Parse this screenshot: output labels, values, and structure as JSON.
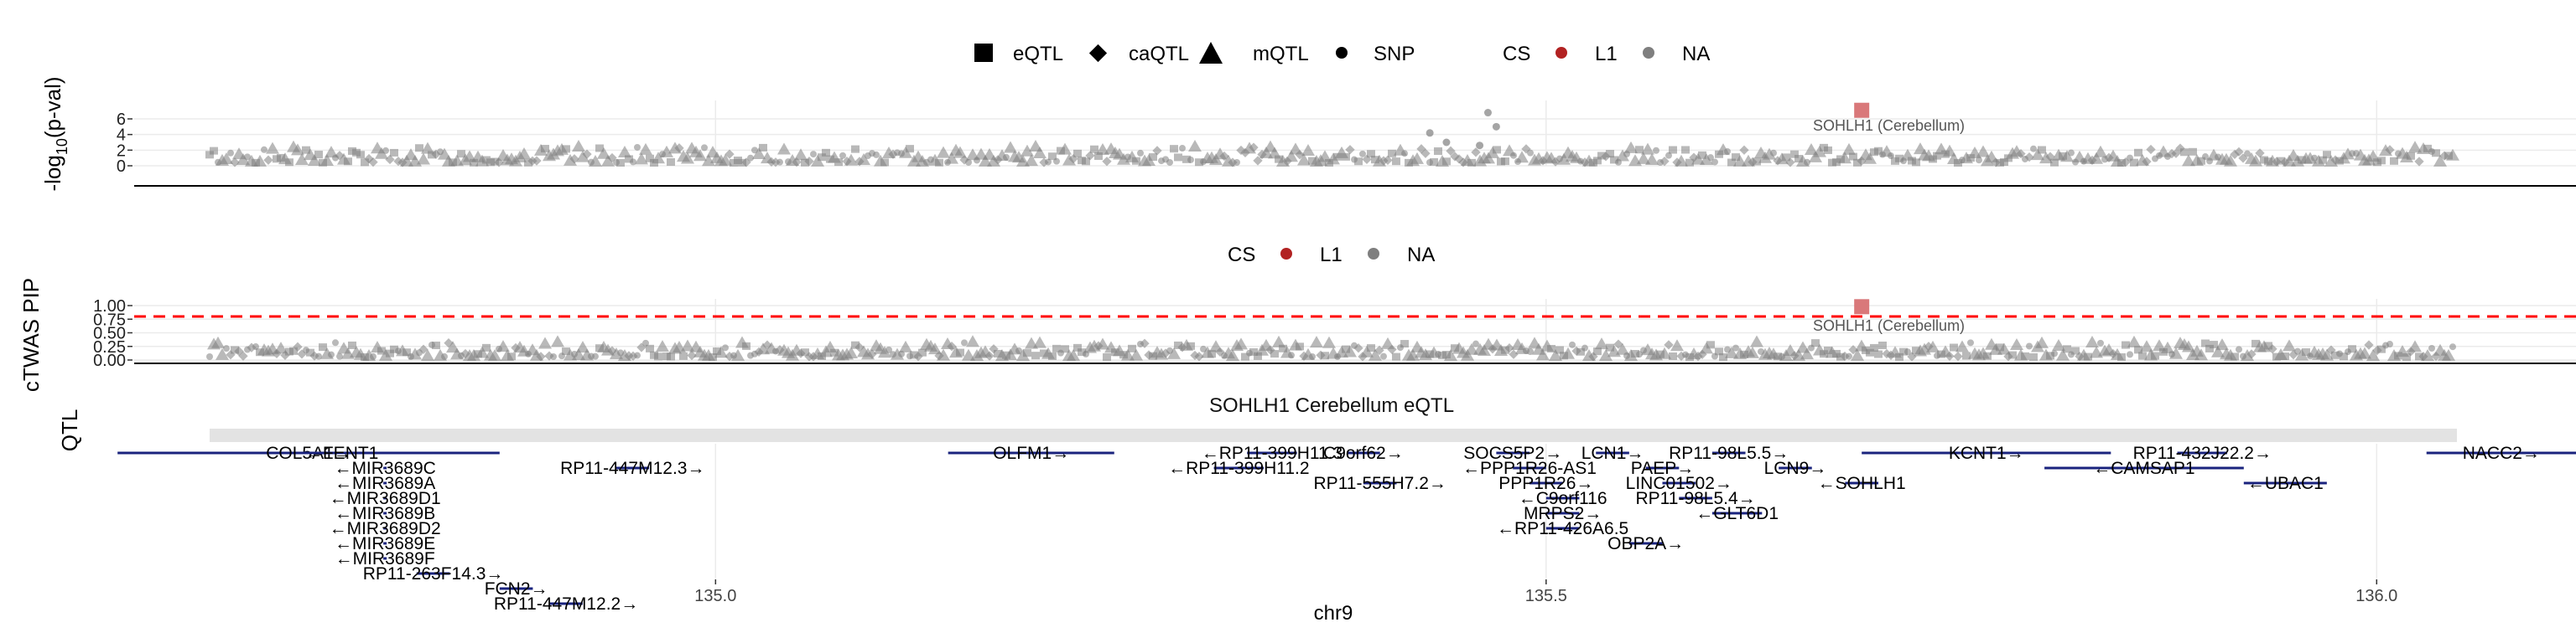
{
  "colors": {
    "point": "#7f7f7f",
    "credible_set": "#b22222",
    "highlight": "#d9787a",
    "gene": "#1a237e",
    "threshold": "#ff0000",
    "grid": "#ebebeb",
    "strip": "#e3e3e3"
  },
  "legend_top": {
    "shapes": [
      {
        "label": "eQTL",
        "shape": "square"
      },
      {
        "label": "caQTL",
        "shape": "diamond"
      },
      {
        "label": "mQTL",
        "shape": "triangle"
      },
      {
        "label": "SNP",
        "shape": "circle"
      }
    ],
    "cs_title": "CS",
    "cs_items": [
      {
        "label": "L1",
        "color": "#b22222"
      },
      {
        "label": "NA",
        "color": "#7f7f7f"
      }
    ]
  },
  "legend_mid": {
    "cs_title": "CS",
    "cs_items": [
      {
        "label": "L1",
        "color": "#b22222"
      },
      {
        "label": "NA",
        "color": "#7f7f7f"
      }
    ]
  },
  "chart_data": [
    {
      "type": "scatter",
      "panel": "qtl",
      "ylabel_main": "-log",
      "ylabel_sub": "10",
      "ylabel_end": "(p-val)",
      "ylim": [
        0,
        7.5
      ],
      "y_ticks": [
        "0",
        "2",
        "4",
        "6"
      ],
      "xlim": [
        134.65,
        136.12
      ],
      "highlight": {
        "x": 135.69,
        "y": 7.1,
        "label": "SOHLH1 (Cerebellum)"
      },
      "outliers": [
        {
          "x": 135.465,
          "y": 6.8
        },
        {
          "x": 135.47,
          "y": 5.0
        },
        {
          "x": 135.43,
          "y": 4.2
        },
        {
          "x": 135.44,
          "y": 3.0
        },
        {
          "x": 135.46,
          "y": 2.6
        }
      ]
    },
    {
      "type": "scatter",
      "panel": "ctwas",
      "ylabel": "cTWAS PIP",
      "ylim": [
        0,
        1.0
      ],
      "y_ticks": [
        "0.00",
        "0.25",
        "0.50",
        "0.75",
        "1.00"
      ],
      "threshold": 0.8,
      "highlight": {
        "x": 135.69,
        "y": 0.98,
        "label": "SOHLH1 (Cerebellum)"
      }
    },
    {
      "type": "gene_track",
      "panel": "genes",
      "strip_title": "SOHLH1 Cerebellum eQTL",
      "ylabel": "QTL",
      "xlabel": "chr9",
      "x_ticks": [
        "135.0",
        "135.5",
        "136.0"
      ],
      "genes": [
        {
          "label": "COL5A1→",
          "start": 134.64,
          "end": 134.87,
          "row": 0
        },
        {
          "label": "←FENT1",
          "start": 134.75,
          "end": 134.8,
          "row": 0
        },
        {
          "label": "RP11-447M12.3→",
          "start": 134.94,
          "end": 134.96,
          "row": 1
        },
        {
          "label": "OLFM1→",
          "start": 135.14,
          "end": 135.24,
          "row": 0
        },
        {
          "label": "←RP11-399H11.3",
          "start": 135.32,
          "end": 135.35,
          "row": 0
        },
        {
          "label": "←RP11-399H11.2",
          "start": 135.3,
          "end": 135.33,
          "row": 1
        },
        {
          "label": "C9orf62→",
          "start": 135.38,
          "end": 135.4,
          "row": 0
        },
        {
          "label": "RP11-555H7.2→",
          "start": 135.39,
          "end": 135.41,
          "row": 2
        },
        {
          "label": "SOCS5P2→",
          "start": 135.47,
          "end": 135.49,
          "row": 0
        },
        {
          "label": "←PPP1R26-AS1",
          "start": 135.48,
          "end": 135.5,
          "row": 1
        },
        {
          "label": "PPP1R26→",
          "start": 135.49,
          "end": 135.51,
          "row": 2
        },
        {
          "label": "←C9orf116",
          "start": 135.5,
          "end": 135.52,
          "row": 3
        },
        {
          "label": "MRPS2→",
          "start": 135.5,
          "end": 135.52,
          "row": 4
        },
        {
          "label": "←RP11-426A6.5",
          "start": 135.5,
          "end": 135.52,
          "row": 5
        },
        {
          "label": "LCN1→",
          "start": 135.53,
          "end": 135.55,
          "row": 0
        },
        {
          "label": "PAEP→",
          "start": 135.56,
          "end": 135.58,
          "row": 1
        },
        {
          "label": "LINC01502→",
          "start": 135.57,
          "end": 135.59,
          "row": 2
        },
        {
          "label": "RP11-98L5.4→",
          "start": 135.58,
          "end": 135.6,
          "row": 3
        },
        {
          "label": "←GLT6D1",
          "start": 135.6,
          "end": 135.63,
          "row": 4
        },
        {
          "label": "OBP2A→",
          "start": 135.55,
          "end": 135.57,
          "row": 6
        },
        {
          "label": "RP11-98L5.5→",
          "start": 135.6,
          "end": 135.62,
          "row": 0
        },
        {
          "label": "LCN9→",
          "start": 135.64,
          "end": 135.66,
          "row": 1
        },
        {
          "label": "←SOHLH1",
          "start": 135.68,
          "end": 135.7,
          "row": 2
        },
        {
          "label": "KCNT1→",
          "start": 135.69,
          "end": 135.84,
          "row": 0
        },
        {
          "label": "←CAMSAP1",
          "start": 135.8,
          "end": 135.92,
          "row": 1
        },
        {
          "label": "RP11-432J22.2→",
          "start": 135.88,
          "end": 135.91,
          "row": 0
        },
        {
          "label": "←UBAC1",
          "start": 135.92,
          "end": 135.97,
          "row": 2
        },
        {
          "label": "NACC2→",
          "start": 136.03,
          "end": 136.12,
          "row": 0
        },
        {
          "label": "←MIR3689C",
          "start": 134.8,
          "end": 134.801,
          "row": 1
        },
        {
          "label": "←MIR3689A",
          "start": 134.8,
          "end": 134.801,
          "row": 2
        },
        {
          "label": "←MIR3689D1",
          "start": 134.8,
          "end": 134.801,
          "row": 3
        },
        {
          "label": "←MIR3689B",
          "start": 134.8,
          "end": 134.801,
          "row": 4
        },
        {
          "label": "←MIR3689D2",
          "start": 134.8,
          "end": 134.801,
          "row": 5
        },
        {
          "label": "←MIR3689E",
          "start": 134.8,
          "end": 134.801,
          "row": 6
        },
        {
          "label": "←MIR3689F",
          "start": 134.8,
          "end": 134.801,
          "row": 7
        },
        {
          "label": "RP11-263F14.3→",
          "start": 134.82,
          "end": 134.84,
          "row": 8
        },
        {
          "label": "FCN2→",
          "start": 134.87,
          "end": 134.89,
          "row": 9
        },
        {
          "label": "RP11-447M12.2→",
          "start": 134.9,
          "end": 134.92,
          "row": 10
        }
      ]
    }
  ]
}
